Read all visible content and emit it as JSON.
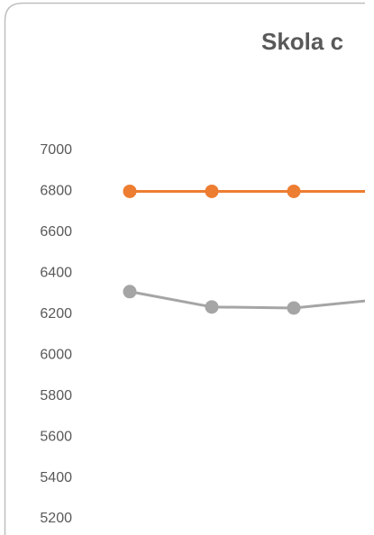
{
  "chart_data": {
    "type": "line",
    "title": "Skola c",
    "categories": [
      null,
      null,
      null,
      null
    ],
    "series": [
      {
        "color": "#ED7D31",
        "values": [
          6800,
          6800,
          6800,
          6800
        ]
      },
      {
        "color": "#A5A5A5",
        "values": [
          6310,
          6235,
          6230,
          6270
        ]
      }
    ],
    "ylim": [
      5200,
      7000
    ],
    "yticks": [
      5200,
      5400,
      5600,
      5800,
      6000,
      6200,
      6400,
      6600,
      6800,
      7000
    ],
    "grid": false
  }
}
